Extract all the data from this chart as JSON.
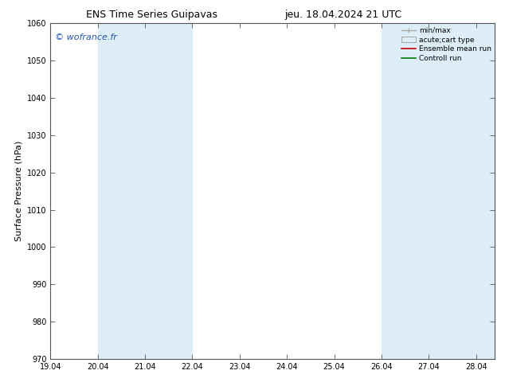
{
  "title_left": "ENS Time Series Guipavas",
  "title_right": "jeu. 18.04.2024 21 UTC",
  "ylabel": "Surface Pressure (hPa)",
  "watermark": "© wofrance.fr",
  "ylim": [
    970,
    1060
  ],
  "yticks": [
    970,
    980,
    990,
    1000,
    1010,
    1020,
    1030,
    1040,
    1050,
    1060
  ],
  "xlim_start": 0,
  "xlim_end": 9.4,
  "xtick_positions": [
    0,
    1,
    2,
    3,
    4,
    5,
    6,
    7,
    8,
    9
  ],
  "xtick_labels": [
    "19.04",
    "20.04",
    "21.04",
    "22.04",
    "23.04",
    "24.04",
    "25.04",
    "26.04",
    "27.04",
    "28.04"
  ],
  "shaded_bands": [
    {
      "xstart": 1,
      "xend": 3,
      "color": "#ddeef8"
    },
    {
      "xstart": 7,
      "xend": 8,
      "color": "#ddeef8"
    },
    {
      "xstart": 8,
      "xend": 9.4,
      "color": "#ddeef8"
    }
  ],
  "background_color": "#ffffff",
  "plot_bg_color": "#ffffff",
  "legend_labels": [
    "min/max",
    "acute;cart type",
    "Ensemble mean run",
    "Controll run"
  ],
  "legend_colors": [
    "#aaaaaa",
    "#cccccc",
    "#cc0000",
    "#007700"
  ],
  "title_fontsize": 9,
  "tick_fontsize": 7,
  "ylabel_fontsize": 8,
  "watermark_color": "#2255aa",
  "watermark_fontsize": 8
}
